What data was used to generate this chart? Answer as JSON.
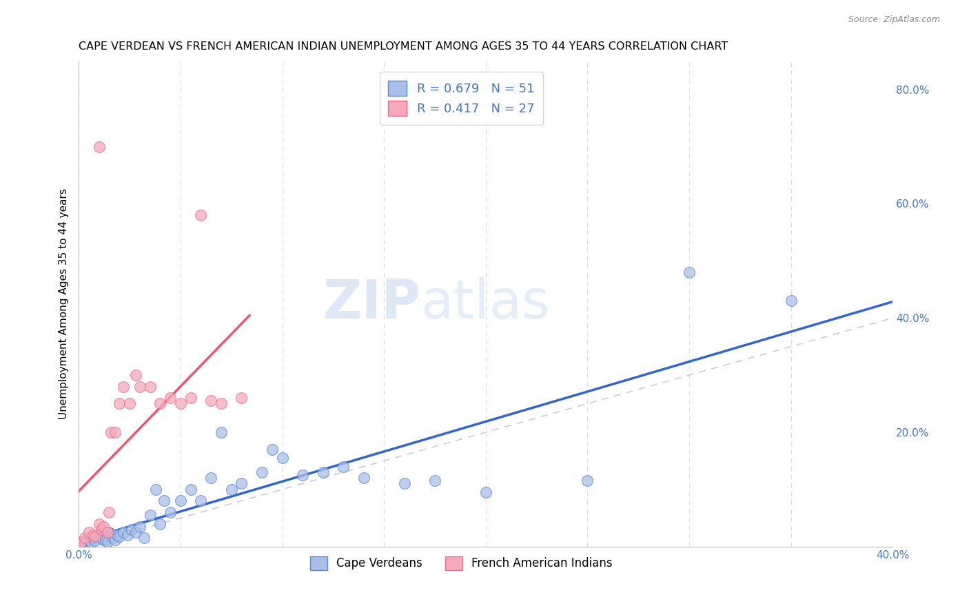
{
  "title": "CAPE VERDEAN VS FRENCH AMERICAN INDIAN UNEMPLOYMENT AMONG AGES 35 TO 44 YEARS CORRELATION CHART",
  "source": "Source: ZipAtlas.com",
  "ylabel": "Unemployment Among Ages 35 to 44 years",
  "xlim": [
    0.0,
    0.4
  ],
  "ylim": [
    0.0,
    0.85
  ],
  "legend1_r": "0.679",
  "legend1_n": "51",
  "legend2_r": "0.417",
  "legend2_n": "27",
  "blue_fill": "#AABFE8",
  "pink_fill": "#F4AABB",
  "blue_edge": "#5588CC",
  "pink_edge": "#EE6688",
  "blue_line": "#3366CC",
  "pink_line": "#EE5577",
  "diag_color": "#CCCCCC",
  "axis_label_color": "#4477BB",
  "watermark": "ZIPatlas",
  "cv_x": [
    0.001,
    0.002,
    0.003,
    0.004,
    0.005,
    0.006,
    0.007,
    0.008,
    0.009,
    0.01,
    0.011,
    0.012,
    0.013,
    0.014,
    0.015,
    0.016,
    0.017,
    0.018,
    0.019,
    0.02,
    0.022,
    0.024,
    0.026,
    0.028,
    0.03,
    0.032,
    0.035,
    0.038,
    0.04,
    0.042,
    0.045,
    0.05,
    0.055,
    0.06,
    0.065,
    0.07,
    0.075,
    0.08,
    0.09,
    0.095,
    0.1,
    0.11,
    0.12,
    0.13,
    0.14,
    0.16,
    0.175,
    0.2,
    0.25,
    0.3,
    0.35
  ],
  "cv_y": [
    0.005,
    0.008,
    0.006,
    0.01,
    0.012,
    0.008,
    0.015,
    0.01,
    0.018,
    0.02,
    0.015,
    0.012,
    0.01,
    0.008,
    0.025,
    0.022,
    0.015,
    0.012,
    0.02,
    0.018,
    0.025,
    0.02,
    0.03,
    0.025,
    0.035,
    0.015,
    0.055,
    0.1,
    0.04,
    0.08,
    0.06,
    0.08,
    0.1,
    0.08,
    0.12,
    0.2,
    0.1,
    0.11,
    0.13,
    0.17,
    0.155,
    0.125,
    0.13,
    0.14,
    0.12,
    0.11,
    0.115,
    0.095,
    0.115,
    0.48,
    0.43
  ],
  "fai_x": [
    0.001,
    0.003,
    0.005,
    0.007,
    0.008,
    0.01,
    0.011,
    0.012,
    0.014,
    0.015,
    0.016,
    0.018,
    0.02,
    0.022,
    0.025,
    0.028,
    0.03,
    0.035,
    0.04,
    0.045,
    0.05,
    0.055,
    0.06,
    0.065,
    0.07,
    0.08,
    0.01
  ],
  "fai_y": [
    0.008,
    0.015,
    0.025,
    0.02,
    0.018,
    0.04,
    0.03,
    0.035,
    0.025,
    0.06,
    0.2,
    0.2,
    0.25,
    0.28,
    0.25,
    0.3,
    0.28,
    0.28,
    0.25,
    0.26,
    0.25,
    0.26,
    0.58,
    0.255,
    0.25,
    0.26,
    0.7
  ]
}
